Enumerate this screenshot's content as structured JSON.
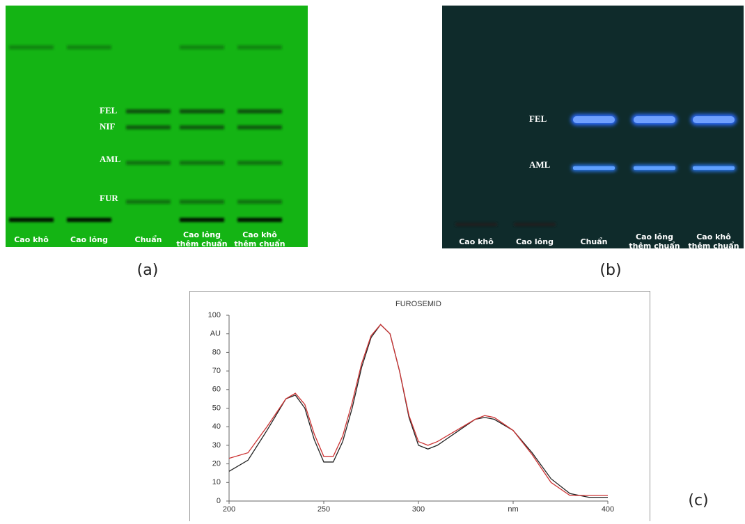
{
  "panels": {
    "a": {
      "label": "(a)",
      "band_labels": [
        "FEL",
        "NIF",
        "AML",
        "FUR"
      ],
      "lanes": [
        [
          "Cao khô"
        ],
        [
          "Cao lỏng"
        ],
        [
          "Chuẩn"
        ],
        [
          "Cao lỏng",
          "thêm chuẩn"
        ],
        [
          "Cao khô",
          "thêm chuẩn"
        ]
      ]
    },
    "b": {
      "label": "(b)",
      "band_labels": [
        "FEL",
        "AML"
      ],
      "lanes": [
        [
          "Cao khô"
        ],
        [
          "Cao lỏng"
        ],
        [
          "Chuẩn"
        ],
        [
          "Cao lỏng",
          "thêm chuẩn"
        ],
        [
          "Cao khô",
          "thêm chuẩn"
        ]
      ]
    }
  },
  "chart_data": {
    "type": "line",
    "title": "FUROSEMID",
    "panel_label": "(c)",
    "x": [
      200,
      210,
      220,
      230,
      235,
      240,
      245,
      250,
      255,
      260,
      265,
      270,
      275,
      280,
      285,
      290,
      295,
      300,
      305,
      310,
      320,
      330,
      335,
      340,
      350,
      360,
      370,
      380,
      390,
      400
    ],
    "series": [
      {
        "color": "#222222",
        "values": [
          16,
          22,
          38,
          55,
          57,
          50,
          33,
          21,
          21,
          32,
          50,
          72,
          88,
          95,
          90,
          70,
          45,
          30,
          28,
          30,
          37,
          44,
          45,
          44,
          38,
          26,
          12,
          4,
          2,
          2
        ]
      },
      {
        "color": "#cc3333",
        "values": [
          23,
          26,
          40,
          55,
          58,
          52,
          36,
          24,
          24,
          35,
          53,
          74,
          89,
          95,
          90,
          70,
          46,
          32,
          30,
          32,
          38,
          44,
          46,
          45,
          38,
          25,
          10,
          3,
          3,
          3
        ]
      }
    ],
    "xlim": [
      200,
      400
    ],
    "ylim": [
      0,
      100
    ],
    "xticks": [
      200,
      250,
      300,
      {
        "value": 350,
        "label": "nm"
      },
      400
    ],
    "yticks": [
      0,
      10,
      20,
      30,
      40,
      50,
      60,
      70,
      80,
      {
        "value": 90,
        "label": "AU"
      },
      100
    ]
  }
}
